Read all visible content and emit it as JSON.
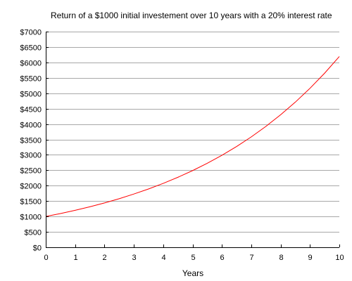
{
  "chart_data": {
    "type": "line",
    "title": "Return of a $1000 initial investement over 10 years with a 20% interest rate",
    "xlabel": "Years",
    "ylabel": "",
    "xlim": [
      0,
      10
    ],
    "ylim": [
      0,
      7000
    ],
    "x_ticks": [
      "0",
      "1",
      "2",
      "3",
      "4",
      "5",
      "6",
      "7",
      "8",
      "9",
      "10"
    ],
    "x_tick_values": [
      0,
      1,
      2,
      3,
      4,
      5,
      6,
      7,
      8,
      9,
      10
    ],
    "y_ticks": [
      "$0",
      "$500",
      "$1000",
      "$1500",
      "$2000",
      "$2500",
      "$3000",
      "$3500",
      "$4000",
      "$4500",
      "$5000",
      "$5500",
      "$6000",
      "$6500",
      "$7000"
    ],
    "y_tick_values": [
      0,
      500,
      1000,
      1500,
      2000,
      2500,
      3000,
      3500,
      4000,
      4500,
      5000,
      5500,
      6000,
      6500,
      7000
    ],
    "grid": "horizontal",
    "legend": "none",
    "series": [
      {
        "color": "#ff0000",
        "x": [
          0,
          0.5,
          1,
          1.5,
          2,
          2.5,
          3,
          3.5,
          4,
          4.5,
          5,
          5.5,
          6,
          6.5,
          7,
          7.5,
          8,
          8.5,
          9,
          9.5,
          10
        ],
        "y": [
          1000,
          1095,
          1200,
          1315,
          1440,
          1577,
          1728,
          1893,
          2074,
          2272,
          2488,
          2726,
          2986,
          3271,
          3583,
          3925,
          4300,
          4710,
          5160,
          5652,
          6192
        ]
      }
    ]
  }
}
